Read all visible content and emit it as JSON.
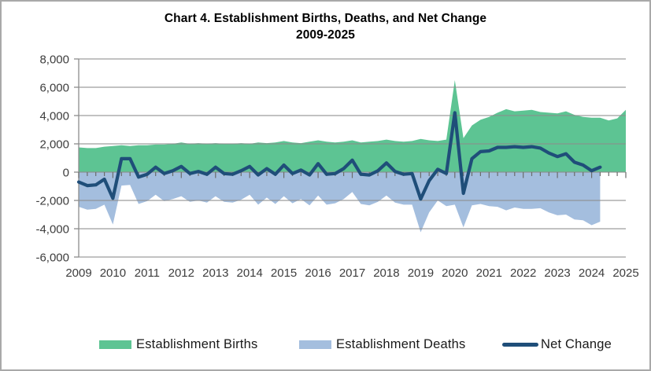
{
  "window": {
    "background_color": "#FFFFFF",
    "border_color": "#A9A9A9"
  },
  "chart": {
    "title_line1": "Chart 4. Establishment Births, Deaths, and Net Change",
    "title_line2": "2009-2025",
    "legend": [
      {
        "label": "Establishment Births",
        "type": "area",
        "color": "#5DC493",
        "x": 126
      },
      {
        "label": "Establishment Deaths",
        "type": "area",
        "color": "#A4BEDE",
        "x": 380
      },
      {
        "label": "Net Change",
        "type": "line",
        "color": "#1F4E79",
        "x": 638
      }
    ]
  },
  "chart_data": {
    "type": "combo-area-line",
    "title": "Chart 4. Establishment Births, Deaths, and Net Change 2009-2025",
    "x_unit": "quarter",
    "x_start": "2009 Q1",
    "points_per_year": 4,
    "x_tick_labels": [
      "2009",
      "2010",
      "2011",
      "2012",
      "2013",
      "2014",
      "2015",
      "2016",
      "2017",
      "2018",
      "2019",
      "2020",
      "2021",
      "2022",
      "2023",
      "2024",
      "2025"
    ],
    "ylim": [
      -6000,
      8000
    ],
    "y_tick_interval": 2000,
    "y_tick_labels": [
      "8,000",
      "6,000",
      "4,000",
      "2,000",
      "0",
      "-2,000",
      "-4,000",
      "-6,000"
    ],
    "y_tick_values": [
      8000,
      6000,
      4000,
      2000,
      0,
      -2000,
      -4000,
      -6000
    ],
    "grid": true,
    "gridline_color": "#8C8C8C",
    "axis_text_color": "#3D3D3D",
    "legend_position": "bottom",
    "series": [
      {
        "name": "Establishment Births",
        "type": "area",
        "color": "#5DC493",
        "values": [
          1750,
          1700,
          1700,
          1800,
          1850,
          1900,
          1850,
          1900,
          1900,
          1950,
          1950,
          2000,
          2100,
          2000,
          2050,
          2000,
          2050,
          2000,
          2000,
          2050,
          2000,
          2100,
          2050,
          2100,
          2200,
          2100,
          2050,
          2150,
          2250,
          2150,
          2100,
          2150,
          2250,
          2100,
          2150,
          2200,
          2300,
          2200,
          2150,
          2200,
          2350,
          2250,
          2200,
          2300,
          6500,
          2400,
          3300,
          3700,
          3900,
          4200,
          4450,
          4300,
          4350,
          4400,
          4250,
          4200,
          4150,
          4300,
          4050,
          3900,
          3850,
          3850,
          3650,
          3800,
          4400
        ]
      },
      {
        "name": "Establishment Deaths",
        "type": "area",
        "color": "#A4BEDE",
        "values": [
          -2450,
          -2650,
          -2600,
          -2300,
          -3700,
          -950,
          -900,
          -2250,
          -2050,
          -1600,
          -2050,
          -1900,
          -1700,
          -2100,
          -2000,
          -2150,
          -1700,
          -2100,
          -2150,
          -1950,
          -1600,
          -2300,
          -1800,
          -2250,
          -1700,
          -2200,
          -1900,
          -2350,
          -1650,
          -2300,
          -2200,
          -1900,
          -1400,
          -2250,
          -2350,
          -2100,
          -1650,
          -2150,
          -2300,
          -2300,
          -4250,
          -2850,
          -2000,
          -2400,
          -2300,
          -3900,
          -2350,
          -2250,
          -2400,
          -2450,
          -2700,
          -2500,
          -2600,
          -2600,
          -2550,
          -2850,
          -3050,
          -3000,
          -3350,
          -3400,
          -3750,
          -3500
        ]
      },
      {
        "name": "Net Change",
        "type": "line",
        "color": "#1F4E79",
        "stroke_width": 4.2,
        "values": [
          -700,
          -950,
          -900,
          -500,
          -1850,
          950,
          950,
          -350,
          -150,
          350,
          -100,
          100,
          400,
          -100,
          50,
          -150,
          350,
          -100,
          -150,
          100,
          400,
          -200,
          250,
          -150,
          500,
          -100,
          150,
          -200,
          600,
          -150,
          -100,
          250,
          850,
          -150,
          -200,
          100,
          650,
          50,
          -150,
          -100,
          -1900,
          -600,
          200,
          -100,
          4200,
          -1500,
          950,
          1450,
          1500,
          1750,
          1750,
          1800,
          1750,
          1800,
          1700,
          1350,
          1100,
          1300,
          700,
          500,
          100,
          350
        ]
      }
    ]
  }
}
